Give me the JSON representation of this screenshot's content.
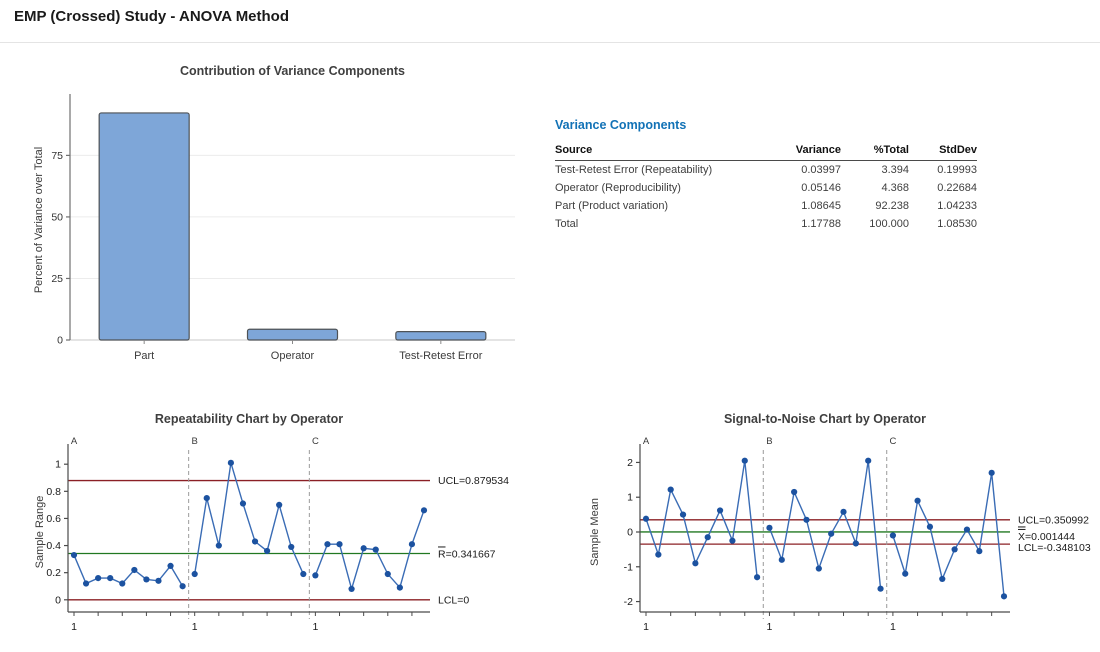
{
  "page_title": "EMP (Crossed) Study - ANOVA Method",
  "colors": {
    "heading_blue": "#1272b6",
    "bar_fill": "#7ea6d8",
    "bar_border": "#4e5256",
    "series_line": "#3a6cb5",
    "marker": "#1c52a0",
    "limit_line": "#8b2025",
    "center_line": "#217821",
    "grid": "#ececec",
    "axis": "#4a4a4a",
    "text": "#3b3b3b"
  },
  "variance_table": {
    "title": "Variance Components",
    "columns": [
      "Source",
      "Variance",
      "%Total",
      "StdDev"
    ],
    "rows": [
      [
        "Test-Retest Error (Repeatability)",
        "0.03997",
        "3.394",
        "0.19993"
      ],
      [
        "Operator (Reproducibility)",
        "0.05146",
        "4.368",
        "0.22684"
      ],
      [
        "Part (Product variation)",
        "1.08645",
        "92.238",
        "1.04233"
      ],
      [
        "Total",
        "1.17788",
        "100.000",
        "1.08530"
      ]
    ]
  },
  "chart_data": [
    {
      "type": "bar",
      "title": "Contribution of Variance Components",
      "xlabel": "",
      "ylabel": "Percent of Variance over Total",
      "categories": [
        "Part",
        "Operator",
        "Test-Retest Error"
      ],
      "values": [
        92.238,
        4.368,
        3.394
      ],
      "yticks": [
        0,
        25,
        50,
        75
      ],
      "ylim": [
        0,
        97.5
      ],
      "grid": true,
      "legend": "none"
    },
    {
      "type": "line",
      "subtype": "control-chart",
      "title": "Repeatability Chart by Operator",
      "ylabel": "Sample Range",
      "groups": [
        "A",
        "B",
        "C"
      ],
      "x_first_label": "1",
      "yticks": [
        0,
        0.2,
        0.4,
        0.6,
        0.8,
        1
      ],
      "ylim": [
        -0.09,
        1.09
      ],
      "limits": {
        "ucl": {
          "value": 0.879534,
          "label": "UCL=0.879534"
        },
        "center": {
          "value": 0.341667,
          "sym": "R",
          "bars": 1,
          "rest": "=0.341667"
        },
        "lcl": {
          "value": 0,
          "label": "LCL=0"
        }
      },
      "series": [
        {
          "name": "A",
          "values": [
            0.33,
            0.12,
            0.16,
            0.16,
            0.12,
            0.22,
            0.15,
            0.14,
            0.25,
            0.1
          ]
        },
        {
          "name": "B",
          "values": [
            0.19,
            0.75,
            0.4,
            1.01,
            0.71,
            0.43,
            0.36,
            0.7,
            0.39,
            0.19
          ]
        },
        {
          "name": "C",
          "values": [
            0.18,
            0.41,
            0.41,
            0.08,
            0.38,
            0.37,
            0.19,
            0.09,
            0.41,
            0.66
          ]
        }
      ]
    },
    {
      "type": "line",
      "subtype": "control-chart",
      "title": "Signal-to-Noise Chart by Operator",
      "ylabel": "Sample Mean",
      "groups": [
        "A",
        "B",
        "C"
      ],
      "x_first_label": "1",
      "yticks": [
        -2,
        -1,
        0,
        1,
        2
      ],
      "ylim": [
        -2.3,
        2.3
      ],
      "limits": {
        "ucl": {
          "value": 0.350992,
          "label": "UCL=0.350992"
        },
        "center": {
          "value": 0.001444,
          "sym": "X",
          "bars": 2,
          "rest": "=0.001444"
        },
        "lcl": {
          "value": -0.348103,
          "label": "LCL=-0.348103"
        }
      },
      "series": [
        {
          "name": "A",
          "values": [
            0.38,
            -0.65,
            1.22,
            0.5,
            -0.9,
            -0.15,
            0.62,
            -0.25,
            2.05,
            -1.3
          ]
        },
        {
          "name": "B",
          "values": [
            0.12,
            -0.8,
            1.15,
            0.35,
            -1.05,
            -0.05,
            0.58,
            -0.33,
            2.05,
            -1.63
          ]
        },
        {
          "name": "C",
          "values": [
            -0.1,
            -1.2,
            0.9,
            0.15,
            -1.35,
            -0.5,
            0.07,
            -0.55,
            1.7,
            -1.85
          ]
        }
      ]
    }
  ]
}
